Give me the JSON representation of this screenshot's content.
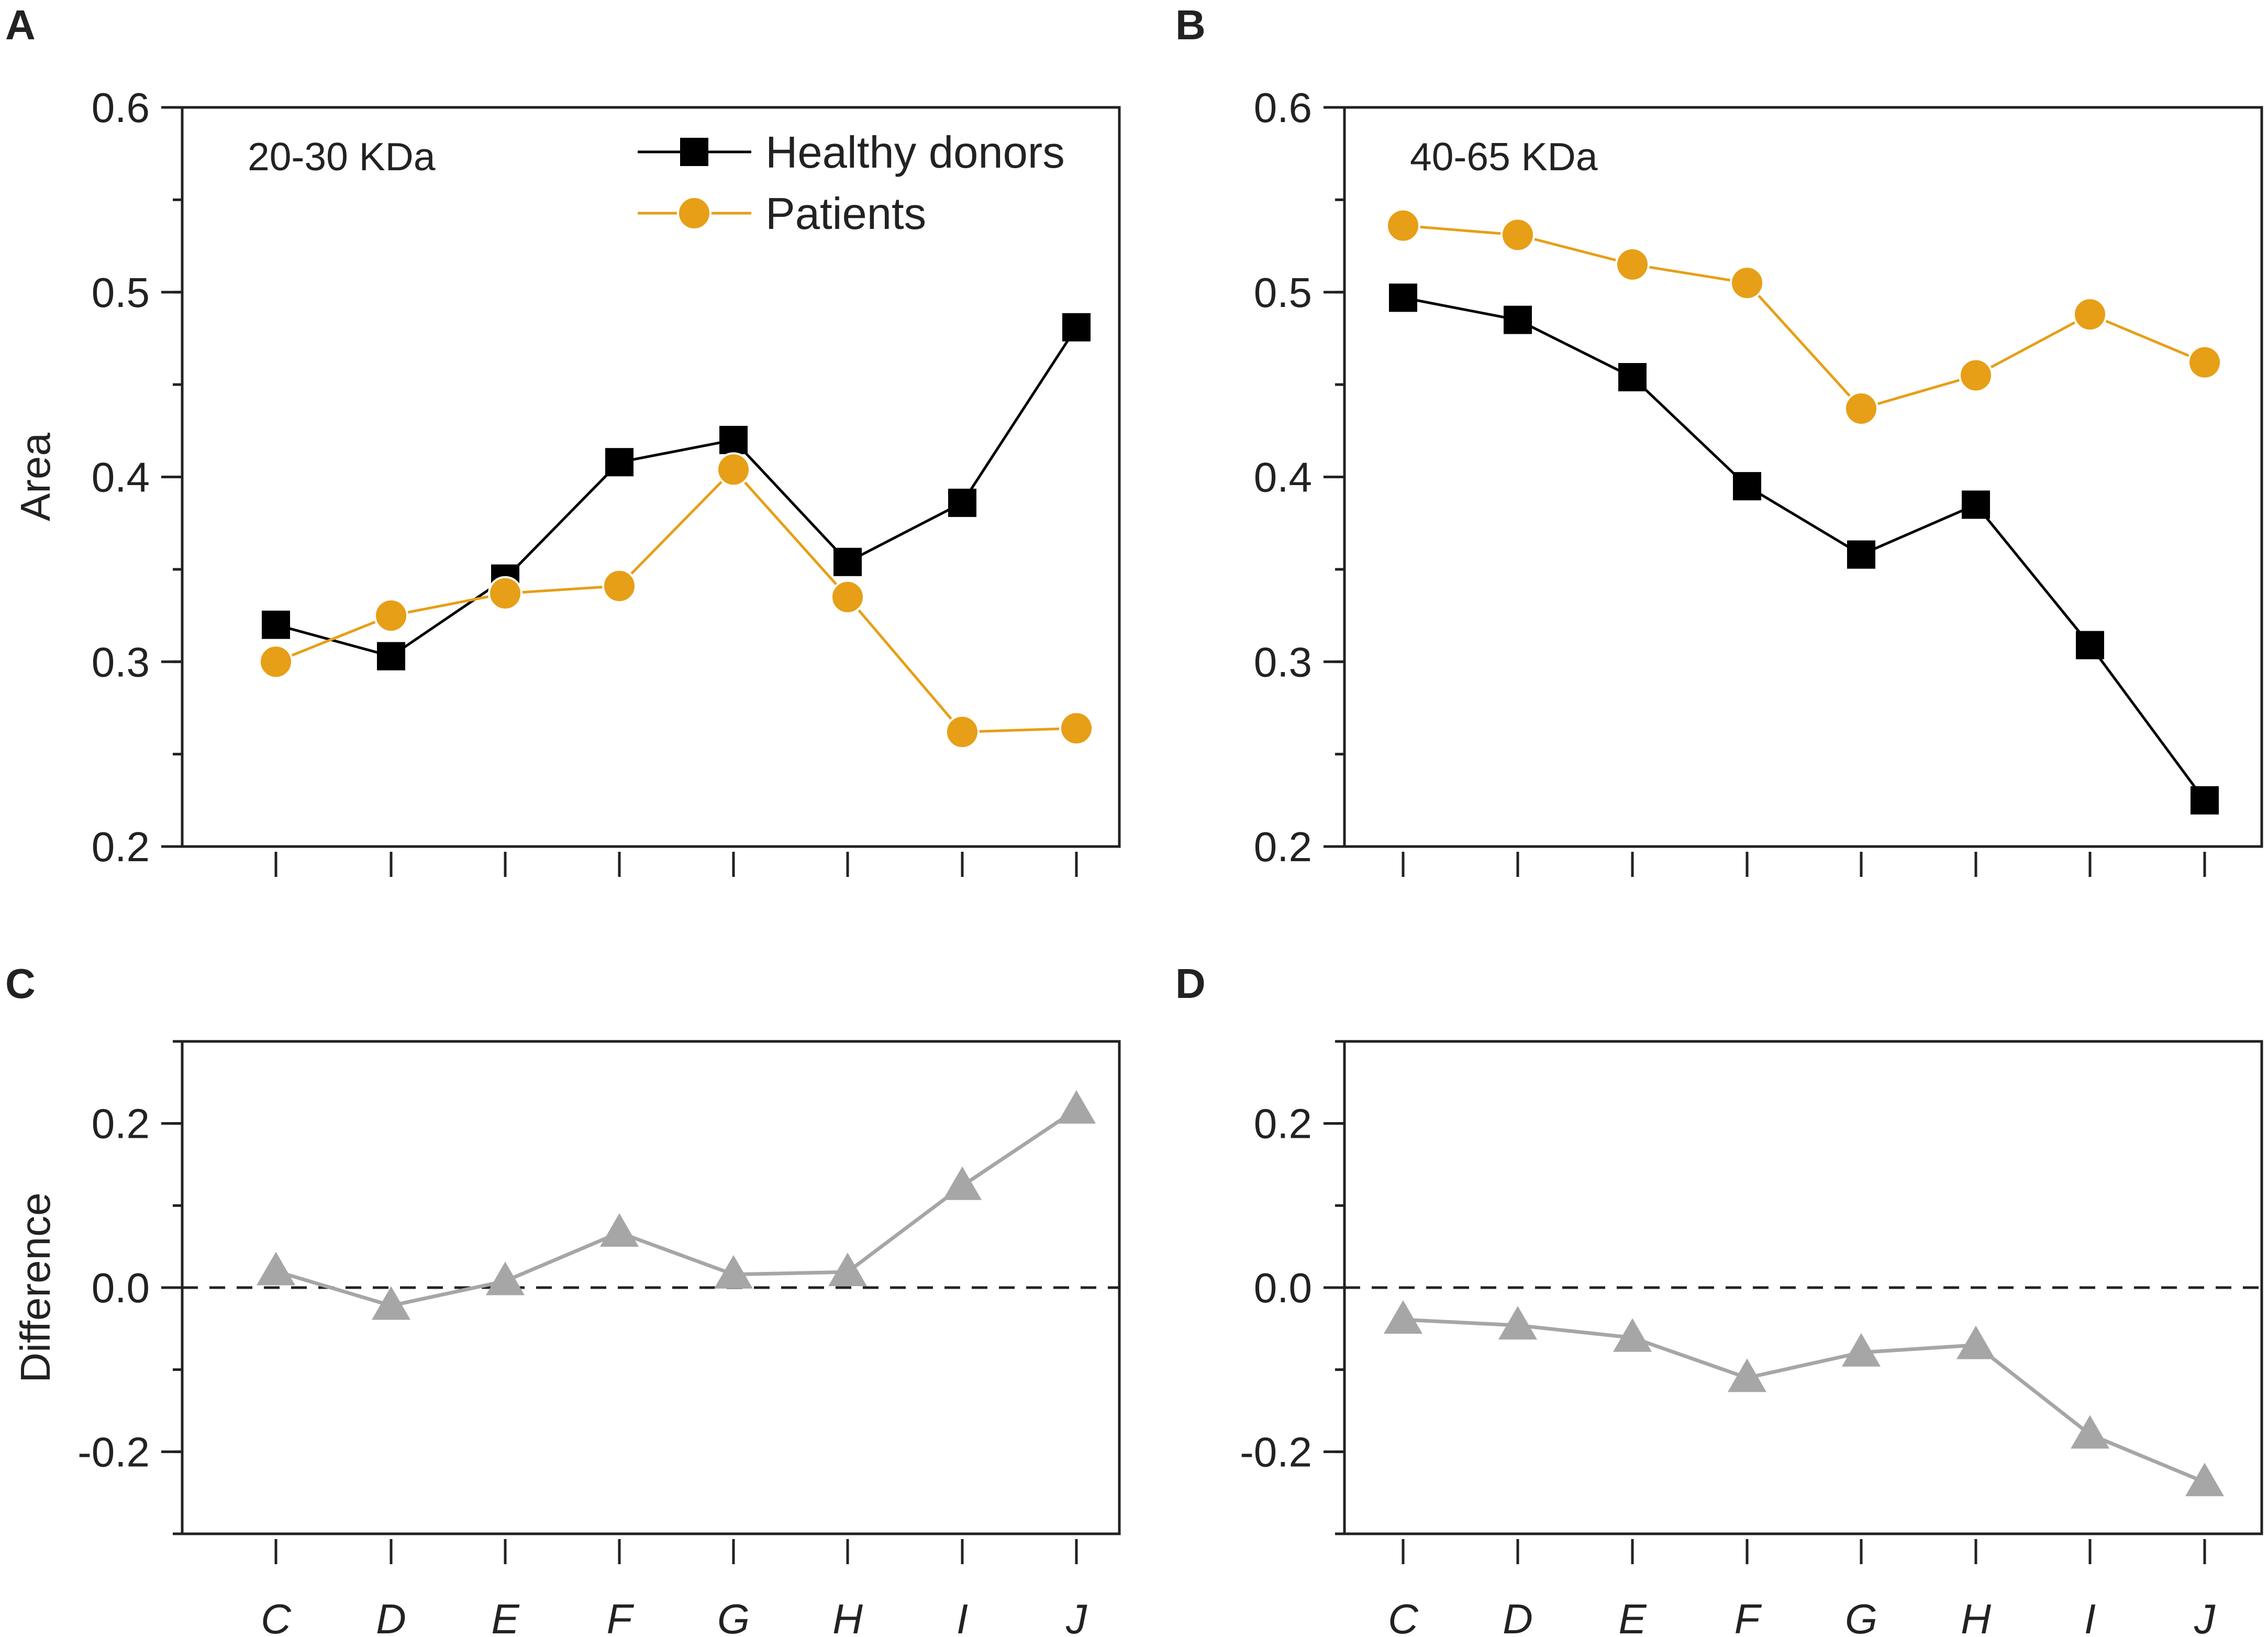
{
  "figure": {
    "categories": [
      "C",
      "D",
      "E",
      "F",
      "G",
      "H",
      "I",
      "J"
    ],
    "colors": {
      "healthy": "#000000",
      "patients": "#E69F17",
      "difference": "#A6A6A6",
      "axis": "#222222"
    }
  },
  "chart_data": [
    {
      "panel": "A",
      "type": "line",
      "annotation": "20-30 KDa",
      "ylabel": "Area",
      "xlabel": "",
      "ylim": [
        0.2,
        0.6
      ],
      "yticks": [
        "0.2",
        "0.3",
        "0.4",
        "0.5",
        "0.6"
      ],
      "categories": [
        "C",
        "D",
        "E",
        "F",
        "G",
        "H",
        "I",
        "J"
      ],
      "legend": {
        "position": "top-right",
        "entries": [
          "Healthy donors",
          "Patients"
        ]
      },
      "series": [
        {
          "name": "Healthy donors",
          "marker": "square",
          "values": [
            0.32,
            0.303,
            0.345,
            0.408,
            0.42,
            0.354,
            0.386,
            0.481
          ]
        },
        {
          "name": "Patients",
          "marker": "circle",
          "values": [
            0.3,
            0.325,
            0.337,
            0.341,
            0.404,
            0.335,
            0.262,
            0.264
          ]
        }
      ]
    },
    {
      "panel": "B",
      "type": "line",
      "annotation": "40-65 KDa",
      "ylabel": "",
      "xlabel": "",
      "ylim": [
        0.2,
        0.6
      ],
      "yticks": [
        "0.2",
        "0.3",
        "0.4",
        "0.5",
        "0.6"
      ],
      "categories": [
        "C",
        "D",
        "E",
        "F",
        "G",
        "H",
        "I",
        "J"
      ],
      "series": [
        {
          "name": "Healthy donors",
          "marker": "square",
          "values": [
            0.497,
            0.485,
            0.454,
            0.395,
            0.358,
            0.385,
            0.309,
            0.225
          ]
        },
        {
          "name": "Patients",
          "marker": "circle",
          "values": [
            0.536,
            0.531,
            0.515,
            0.505,
            0.437,
            0.455,
            0.488,
            0.462
          ]
        }
      ]
    },
    {
      "panel": "C",
      "type": "line",
      "annotation": "",
      "ylabel": "Difference",
      "xlabel": "",
      "ylim": [
        -0.3,
        0.3
      ],
      "yticks": [
        "-0.2",
        "0.0",
        "0.2"
      ],
      "zero_line": true,
      "categories": [
        "C",
        "D",
        "E",
        "F",
        "G",
        "H",
        "I",
        "J"
      ],
      "series": [
        {
          "name": "Difference",
          "marker": "triangle",
          "values": [
            0.02,
            -0.022,
            0.008,
            0.067,
            0.016,
            0.019,
            0.124,
            0.217
          ]
        }
      ]
    },
    {
      "panel": "D",
      "type": "line",
      "annotation": "",
      "ylabel": "",
      "xlabel": "",
      "ylim": [
        -0.3,
        0.3
      ],
      "yticks": [
        "-0.2",
        "0.0",
        "0.2"
      ],
      "zero_line": true,
      "categories": [
        "C",
        "D",
        "E",
        "F",
        "G",
        "H",
        "I",
        "J"
      ],
      "series": [
        {
          "name": "Difference",
          "marker": "triangle",
          "values": [
            -0.039,
            -0.046,
            -0.061,
            -0.11,
            -0.079,
            -0.07,
            -0.179,
            -0.237
          ]
        }
      ]
    }
  ]
}
